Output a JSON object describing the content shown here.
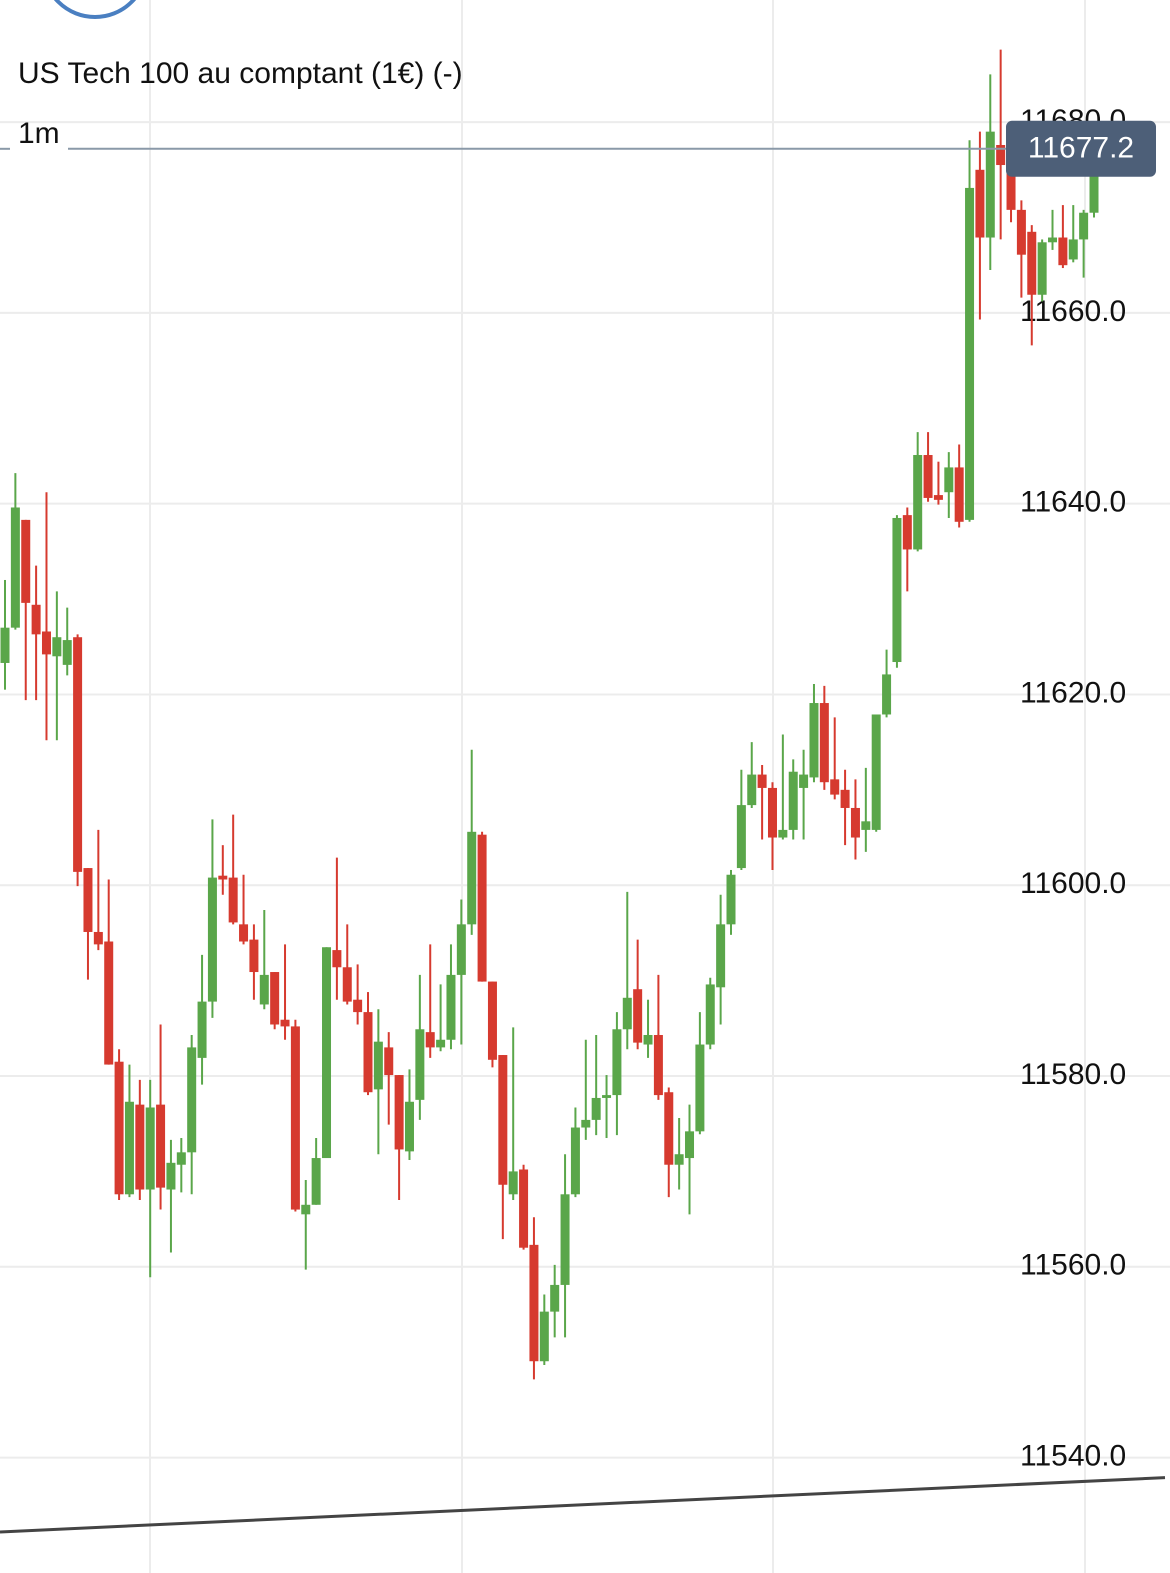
{
  "chart_data": {
    "type": "candlestick",
    "title": "US Tech 100 au comptant (1€) (-)",
    "timeframe": "1m",
    "up_color": "#5aa64a",
    "down_color": "#d63a2f",
    "grid": true,
    "ylim": [
      11527.9,
      11692.8
    ],
    "yticks": [
      {
        "value": 11540,
        "label": "11540.0"
      },
      {
        "value": 11560,
        "label": "11560.0"
      },
      {
        "value": 11580,
        "label": "11580.0"
      },
      {
        "value": 11600,
        "label": "11600.0"
      },
      {
        "value": 11620,
        "label": "11620.0"
      },
      {
        "value": 11640,
        "label": "11640.0"
      },
      {
        "value": 11660,
        "label": "11660.0"
      },
      {
        "value": 11680,
        "label": "11680.0"
      }
    ],
    "last_price": 11677.2,
    "trendline": [
      11532.2,
      11537.9
    ],
    "open": [
      11623.3,
      11627.0,
      11638.3,
      11629.4,
      11626.6,
      11624.0,
      11623.1,
      11626.0,
      11601.8,
      11595.1,
      11594.1,
      11581.5,
      11567.6,
      11577.0,
      11568.1,
      11577.0,
      11568.1,
      11570.7,
      11572.0,
      11581.9,
      11587.8,
      11601.0,
      11600.8,
      11595.9,
      11594.3,
      11587.5,
      11590.9,
      11585.9,
      11585.2,
      11565.5,
      11566.5,
      11571.4,
      11593.2,
      11591.4,
      11588.0,
      11586.7,
      11578.6,
      11583.0,
      11580.1,
      11572.1,
      11577.5,
      11584.6,
      11583.0,
      11583.8,
      11590.6,
      11595.9,
      11605.3,
      11589.9,
      11582.2,
      11567.6,
      11570.2,
      11562.3,
      11550.1,
      11555.3,
      11558.1,
      11567.6,
      11574.6,
      11575.4,
      11577.7,
      11578.0,
      11584.9,
      11589.1,
      11583.3,
      11584.3,
      11578.3,
      11570.7,
      11571.4,
      11574.2,
      11583.3,
      11589.3,
      11595.9,
      11601.8,
      11608.4,
      11611.6,
      11610.2,
      11605.0,
      11605.8,
      11610.2,
      11611.3,
      11619.1,
      11611.1,
      11610.0,
      11608.1,
      11605.8,
      11605.8,
      11617.9,
      11623.4,
      11638.8,
      11635.2,
      11645.1,
      11640.9,
      11641.2,
      11643.8,
      11638.3,
      11675.0,
      11667.9,
      11677.6,
      11675.5,
      11670.8,
      11668.5,
      11661.9,
      11667.4,
      11667.9,
      11665.6,
      11667.7,
      11670.5
    ],
    "high": [
      11632.0,
      11643.2,
      11638.3,
      11633.5,
      11641.2,
      11630.8,
      11629.1,
      11626.3,
      11601.8,
      11605.8,
      11600.6,
      11582.8,
      11581.2,
      11579.6,
      11579.6,
      11585.4,
      11573.3,
      11573.5,
      11584.3,
      11592.7,
      11606.9,
      11604.2,
      11607.4,
      11601.1,
      11595.9,
      11597.4,
      11590.9,
      11593.8,
      11585.9,
      11569.1,
      11573.5,
      11593.5,
      11602.9,
      11595.9,
      11591.7,
      11588.8,
      11587.0,
      11584.6,
      11580.1,
      11580.7,
      11590.6,
      11593.8,
      11589.6,
      11593.8,
      11598.5,
      11614.2,
      11605.6,
      11589.9,
      11582.2,
      11585.1,
      11570.7,
      11565.2,
      11557.1,
      11560.2,
      11571.8,
      11576.7,
      11583.8,
      11584.3,
      11580.1,
      11586.7,
      11599.3,
      11594.3,
      11588.0,
      11590.6,
      11578.8,
      11575.6,
      11577.0,
      11586.7,
      11590.3,
      11599.0,
      11601.6,
      11612.1,
      11615.0,
      11612.6,
      11610.8,
      11615.8,
      11613.2,
      11614.2,
      11621.1,
      11620.9,
      11617.6,
      11612.1,
      11611.1,
      11612.3,
      11617.9,
      11624.7,
      11638.8,
      11639.6,
      11647.5,
      11647.5,
      11644.4,
      11645.4,
      11646.2,
      11678.1,
      11679.0,
      11685.0,
      11687.6,
      11676.6,
      11671.8,
      11669.2,
      11667.7,
      11670.8,
      11671.3,
      11671.3,
      11670.8,
      11677.2
    ],
    "low": [
      11620.5,
      11626.8,
      11619.4,
      11619.4,
      11615.2,
      11615.2,
      11622.0,
      11599.9,
      11590.1,
      11593.2,
      11581.2,
      11567.0,
      11567.3,
      11567.0,
      11558.9,
      11566.0,
      11561.5,
      11567.8,
      11567.6,
      11579.1,
      11586.1,
      11599.0,
      11595.9,
      11593.8,
      11588.0,
      11587.0,
      11584.9,
      11583.8,
      11565.8,
      11559.7,
      11566.5,
      11571.4,
      11588.0,
      11587.5,
      11585.4,
      11578.0,
      11571.8,
      11574.9,
      11567.0,
      11571.2,
      11575.4,
      11581.9,
      11582.6,
      11582.8,
      11583.3,
      11594.8,
      11589.9,
      11580.9,
      11562.9,
      11567.0,
      11561.8,
      11548.2,
      11549.7,
      11552.6,
      11552.6,
      11567.3,
      11573.3,
      11573.8,
      11573.5,
      11573.8,
      11582.8,
      11582.8,
      11581.9,
      11577.5,
      11567.3,
      11568.1,
      11565.5,
      11573.9,
      11582.8,
      11585.4,
      11594.8,
      11601.6,
      11608.1,
      11604.8,
      11601.6,
      11604.8,
      11604.8,
      11604.8,
      11610.8,
      11610.0,
      11609.0,
      11604.2,
      11602.7,
      11603.5,
      11605.6,
      11617.6,
      11622.8,
      11630.8,
      11635.0,
      11640.2,
      11639.9,
      11638.5,
      11637.5,
      11638.1,
      11659.3,
      11664.5,
      11667.7,
      11669.5,
      11661.6,
      11656.6,
      11661.2,
      11666.6,
      11664.7,
      11665.3,
      11663.7,
      11670.0
    ],
    "close": [
      11627.0,
      11639.6,
      11629.6,
      11626.3,
      11624.2,
      11626.0,
      11625.7,
      11601.4,
      11595.1,
      11593.8,
      11581.2,
      11567.6,
      11577.3,
      11568.1,
      11576.7,
      11568.3,
      11570.9,
      11572.0,
      11583.0,
      11587.8,
      11600.8,
      11600.6,
      11596.1,
      11594.1,
      11590.9,
      11590.6,
      11585.4,
      11585.2,
      11566.0,
      11566.5,
      11571.4,
      11593.5,
      11591.4,
      11587.8,
      11586.7,
      11578.3,
      11583.6,
      11580.1,
      11572.3,
      11577.3,
      11584.9,
      11583.0,
      11583.8,
      11590.6,
      11595.9,
      11605.6,
      11589.9,
      11581.7,
      11568.6,
      11570.0,
      11562.0,
      11550.1,
      11555.3,
      11558.1,
      11567.6,
      11574.6,
      11575.4,
      11577.7,
      11578.0,
      11584.9,
      11588.2,
      11583.5,
      11584.3,
      11578.0,
      11570.7,
      11571.8,
      11574.2,
      11583.3,
      11589.6,
      11595.9,
      11601.1,
      11608.4,
      11611.6,
      11610.2,
      11605.0,
      11605.8,
      11611.9,
      11611.6,
      11619.1,
      11610.8,
      11609.5,
      11608.1,
      11605.0,
      11606.7,
      11617.9,
      11622.1,
      11638.5,
      11635.2,
      11645.1,
      11640.6,
      11640.4,
      11643.8,
      11638.1,
      11673.1,
      11667.9,
      11679.0,
      11675.5,
      11670.8,
      11666.1,
      11661.9,
      11667.4,
      11667.9,
      11665.0,
      11667.7,
      11670.5,
      11677.2
    ]
  }
}
